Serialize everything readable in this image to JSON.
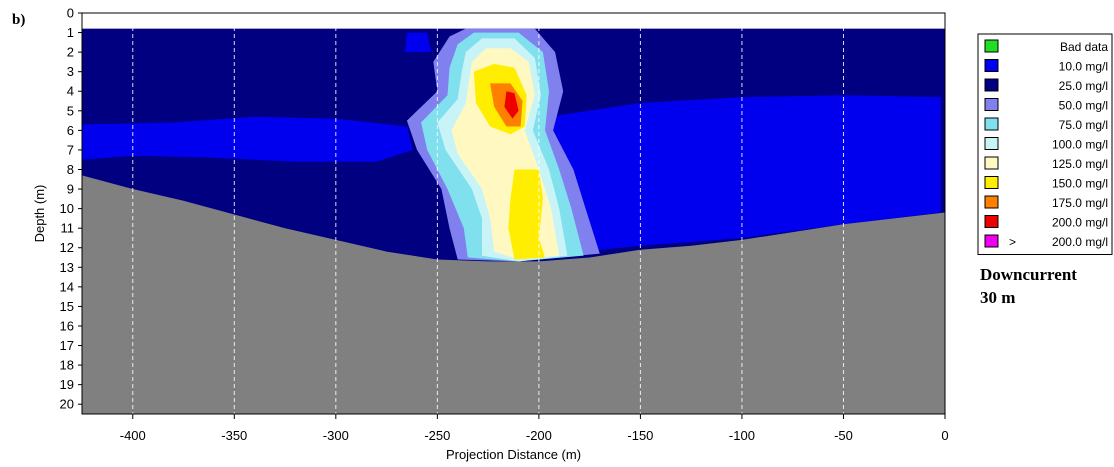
{
  "panel_label": "b)",
  "caption_lines": [
    "Downcurrent",
    "30 m"
  ],
  "chart_data": {
    "type": "heatmap",
    "xlabel": "Projection Distance (m)",
    "ylabel": "Depth (m)",
    "xlim": [
      -425,
      0
    ],
    "ylim": [
      0,
      20.5
    ],
    "x_ticks": [
      -400,
      -350,
      -300,
      -250,
      -200,
      -150,
      -100,
      -50,
      0
    ],
    "x_tick_labels": [
      "-400",
      "-350",
      "-300",
      "-250",
      "-200",
      "-150",
      "-100",
      "-50",
      "0"
    ],
    "y_ticks": [
      0,
      1,
      2,
      3,
      4,
      5,
      6,
      7,
      8,
      9,
      10,
      11,
      12,
      13,
      14,
      15,
      16,
      17,
      18,
      19,
      20
    ],
    "y_tick_labels": [
      "0",
      "1",
      "2",
      "3",
      "4",
      "5",
      "6",
      "7",
      "8",
      "9",
      "10",
      "11",
      "12",
      "13",
      "14",
      "15",
      "16",
      "17",
      "18",
      "19",
      "20"
    ],
    "vertical_grid": true,
    "first_bin_depth": 0.8,
    "legend": {
      "position": "right",
      "entries": [
        {
          "symbol": "",
          "label": "Bad data",
          "color": "#22dd22"
        },
        {
          "symbol": "",
          "label": "10.0 mg/l",
          "color": "#0000ee"
        },
        {
          "symbol": "",
          "label": "25.0 mg/l",
          "color": "#000080"
        },
        {
          "symbol": "",
          "label": "50.0 mg/l",
          "color": "#8080ee"
        },
        {
          "symbol": "",
          "label": "75.0 mg/l",
          "color": "#80e0ee"
        },
        {
          "symbol": "",
          "label": "100.0 mg/l",
          "color": "#c8f4f8"
        },
        {
          "symbol": "",
          "label": "125.0 mg/l",
          "color": "#fff8c0"
        },
        {
          "symbol": "",
          "label": "150.0 mg/l",
          "color": "#ffee00"
        },
        {
          "symbol": "",
          "label": "175.0 mg/l",
          "color": "#ff8000"
        },
        {
          "symbol": "",
          "label": "200.0 mg/l",
          "color": "#ee0000"
        },
        {
          "symbol": ">",
          "label": "200.0 mg/l",
          "color": "#ee00ee"
        }
      ]
    },
    "seabed_color": "#808080",
    "seabed_profile": {
      "x": [
        -425,
        -400,
        -375,
        -350,
        -325,
        -300,
        -275,
        -250,
        -225,
        -200,
        -175,
        -150,
        -125,
        -100,
        -75,
        -50,
        -25,
        0
      ],
      "depth": [
        8.3,
        9.0,
        9.6,
        10.3,
        11.0,
        11.6,
        12.2,
        12.6,
        12.7,
        12.7,
        12.5,
        12.1,
        11.9,
        11.6,
        11.2,
        10.8,
        10.5,
        10.2
      ]
    },
    "concentration_zones": [
      {
        "range": "10.0 mg/l",
        "color": "#0000ee",
        "polygon": [
          [
            -425,
            5.7
          ],
          [
            -380,
            5.6
          ],
          [
            -340,
            5.3
          ],
          [
            -300,
            5.4
          ],
          [
            -265,
            5.8
          ],
          [
            -262,
            7.0
          ],
          [
            -280,
            7.6
          ],
          [
            -320,
            7.6
          ],
          [
            -360,
            7.4
          ],
          [
            -400,
            7.3
          ],
          [
            -425,
            7.5
          ]
        ]
      },
      {
        "range": "10.0 mg/l",
        "color": "#0000ee",
        "polygon": [
          [
            -195,
            5.3
          ],
          [
            -150,
            4.6
          ],
          [
            -100,
            4.3
          ],
          [
            -50,
            4.2
          ],
          [
            -2,
            4.3
          ],
          [
            -2,
            10.2
          ],
          [
            -50,
            10.8
          ],
          [
            -100,
            11.5
          ],
          [
            -150,
            11.9
          ],
          [
            -178,
            12.2
          ],
          [
            -186,
            10.0
          ],
          [
            -197,
            7.5
          ]
        ]
      },
      {
        "range": "10.0 mg/l",
        "color": "#0000ee",
        "polygon": [
          [
            -265,
            1.0
          ],
          [
            -255,
            1.0
          ],
          [
            -253,
            2.0
          ],
          [
            -266,
            2.0
          ]
        ]
      },
      {
        "range": "50.0 mg/l",
        "color": "#8080ee",
        "polygon": [
          [
            -244,
            1.2
          ],
          [
            -236,
            0.8
          ],
          [
            -202,
            0.8
          ],
          [
            -192,
            2.0
          ],
          [
            -188,
            4.0
          ],
          [
            -193,
            6.0
          ],
          [
            -183,
            8.0
          ],
          [
            -177,
            10.0
          ],
          [
            -170,
            12.3
          ],
          [
            -210,
            12.7
          ],
          [
            -240,
            12.6
          ],
          [
            -244,
            11.0
          ],
          [
            -248,
            9.0
          ],
          [
            -260,
            7.0
          ],
          [
            -265,
            5.5
          ],
          [
            -250,
            4.0
          ],
          [
            -252,
            2.5
          ]
        ]
      },
      {
        "range": "75.0 mg/l",
        "color": "#80e0ee",
        "polygon": [
          [
            -240,
            1.6
          ],
          [
            -232,
            1.0
          ],
          [
            -210,
            1.0
          ],
          [
            -198,
            2.0
          ],
          [
            -195,
            4.0
          ],
          [
            -197,
            6.0
          ],
          [
            -190,
            8.0
          ],
          [
            -184,
            10.0
          ],
          [
            -178,
            12.4
          ],
          [
            -210,
            12.7
          ],
          [
            -235,
            12.5
          ],
          [
            -237,
            11.0
          ],
          [
            -245,
            9.0
          ],
          [
            -255,
            7.0
          ],
          [
            -258,
            5.6
          ],
          [
            -245,
            4.2
          ],
          [
            -244,
            2.8
          ]
        ]
      },
      {
        "range": "100.0 mg/l",
        "color": "#c8f4f8",
        "polygon": [
          [
            -236,
            2.0
          ],
          [
            -228,
            1.3
          ],
          [
            -212,
            1.3
          ],
          [
            -202,
            2.3
          ],
          [
            -199,
            4.2
          ],
          [
            -203,
            6.0
          ],
          [
            -195,
            8.0
          ],
          [
            -190,
            10.0
          ],
          [
            -186,
            12.4
          ],
          [
            -210,
            12.7
          ],
          [
            -228,
            12.4
          ],
          [
            -228,
            10.5
          ],
          [
            -233,
            9.0
          ],
          [
            -246,
            7.0
          ],
          [
            -250,
            5.6
          ],
          [
            -240,
            4.4
          ],
          [
            -238,
            3.0
          ]
        ]
      },
      {
        "range": "125.0 mg/l",
        "color": "#fff8c0",
        "polygon": [
          [
            -233,
            2.5
          ],
          [
            -226,
            1.8
          ],
          [
            -214,
            1.8
          ],
          [
            -205,
            2.5
          ],
          [
            -202,
            4.2
          ],
          [
            -207,
            6.0
          ],
          [
            -200,
            8.0
          ],
          [
            -194,
            10.0
          ],
          [
            -190,
            12.4
          ],
          [
            -210,
            12.6
          ],
          [
            -222,
            12.2
          ],
          [
            -224,
            10.5
          ],
          [
            -228,
            9.0
          ],
          [
            -240,
            7.2
          ],
          [
            -243,
            6.0
          ],
          [
            -236,
            4.6
          ],
          [
            -234,
            3.2
          ]
        ]
      },
      {
        "range": "150.0 mg/l",
        "color": "#ffee00",
        "polygon": [
          [
            -232,
            3.0
          ],
          [
            -222,
            2.6
          ],
          [
            -212,
            2.8
          ],
          [
            -206,
            4.2
          ],
          [
            -207,
            5.8
          ],
          [
            -214,
            6.2
          ],
          [
            -224,
            5.8
          ],
          [
            -231,
            4.6
          ]
        ]
      },
      {
        "range": "150.0 mg/l",
        "color": "#ffee00",
        "polygon": [
          [
            -212,
            8.0
          ],
          [
            -200,
            8.0
          ],
          [
            -198,
            9.5
          ],
          [
            -200,
            11.5
          ],
          [
            -197,
            12.5
          ],
          [
            -212,
            12.6
          ],
          [
            -215,
            11.0
          ],
          [
            -214,
            9.5
          ]
        ]
      },
      {
        "range": "175.0 mg/l",
        "color": "#ff8000",
        "polygon": [
          [
            -224,
            3.6
          ],
          [
            -214,
            3.6
          ],
          [
            -208,
            4.5
          ],
          [
            -209,
            5.8
          ],
          [
            -216,
            5.8
          ],
          [
            -222,
            4.8
          ]
        ]
      },
      {
        "range": "200.0 mg/l",
        "color": "#ee0000",
        "polygon": [
          [
            -216,
            4.0
          ],
          [
            -212,
            4.1
          ],
          [
            -210,
            5.0
          ],
          [
            -213,
            5.4
          ],
          [
            -217,
            4.8
          ]
        ]
      }
    ]
  }
}
